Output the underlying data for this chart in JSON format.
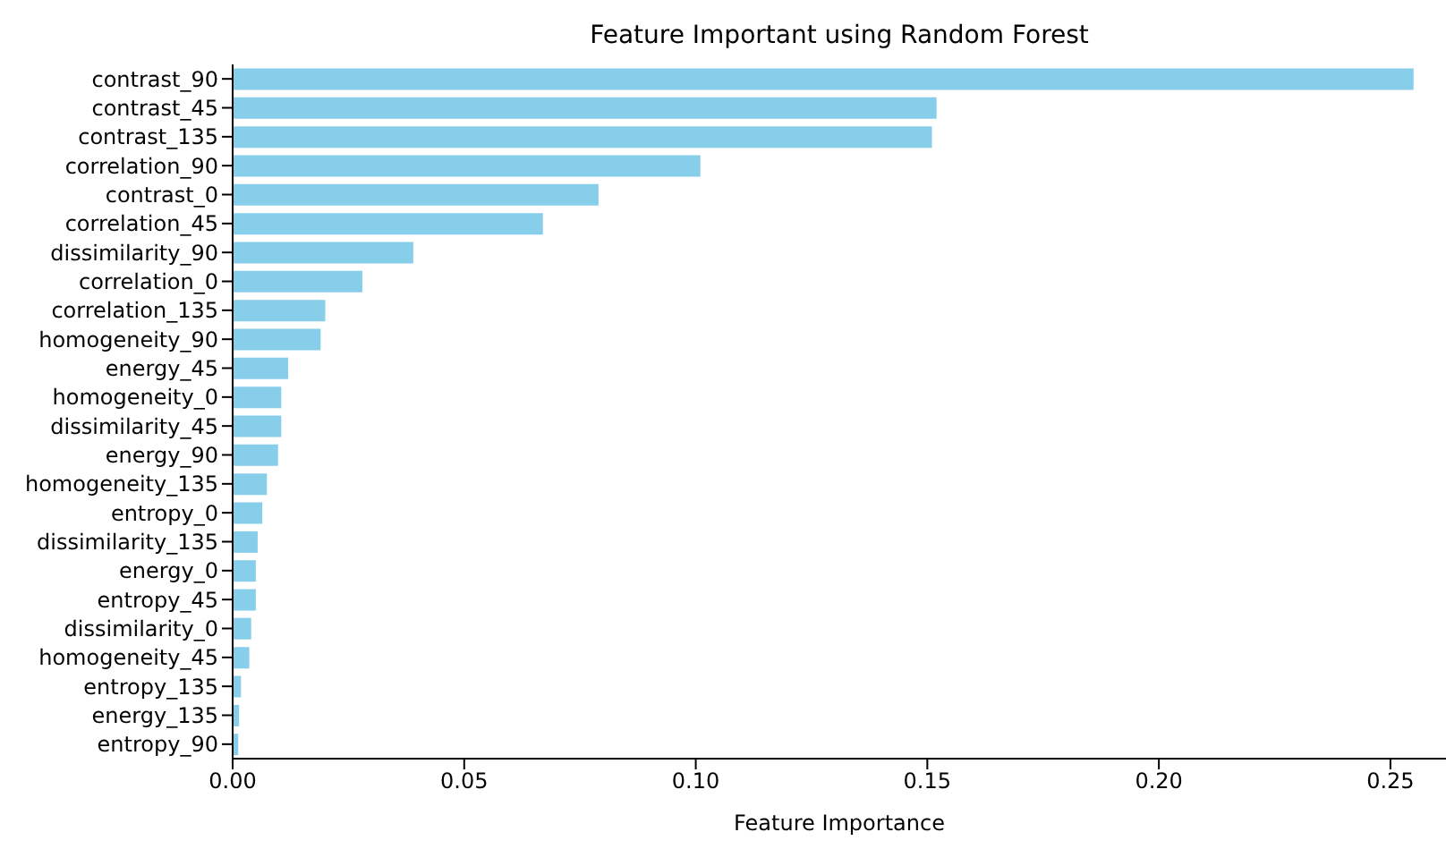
{
  "chart_data": {
    "type": "bar",
    "orientation": "horizontal",
    "title": "Feature Important using Random Forest",
    "xlabel": "Feature Importance",
    "categories": [
      "contrast_90",
      "contrast_45",
      "contrast_135",
      "correlation_90",
      "contrast_0",
      "correlation_45",
      "dissimilarity_90",
      "correlation_0",
      "correlation_135",
      "homogeneity_90",
      "energy_45",
      "homogeneity_0",
      "dissimilarity_45",
      "energy_90",
      "homogeneity_135",
      "entropy_0",
      "dissimilarity_135",
      "energy_0",
      "entropy_45",
      "dissimilarity_0",
      "homogeneity_45",
      "entropy_135",
      "energy_135",
      "entropy_90"
    ],
    "values": [
      0.255,
      0.152,
      0.151,
      0.101,
      0.079,
      0.067,
      0.039,
      0.028,
      0.02,
      0.019,
      0.012,
      0.0105,
      0.0105,
      0.0098,
      0.0074,
      0.0064,
      0.0054,
      0.005,
      0.005,
      0.004,
      0.0036,
      0.0018,
      0.0014,
      0.0012
    ],
    "color": "#87ceeb",
    "xlim": [
      0,
      0.262
    ],
    "xticks": [
      {
        "value": 0,
        "label": "0.00"
      },
      {
        "value": 0.05,
        "label": "0.05"
      },
      {
        "value": 0.1,
        "label": "0.10"
      },
      {
        "value": 0.15,
        "label": "0.15"
      },
      {
        "value": 0.2,
        "label": "0.20"
      },
      {
        "value": 0.25,
        "label": "0.25"
      }
    ],
    "grid": false,
    "legend": false
  }
}
